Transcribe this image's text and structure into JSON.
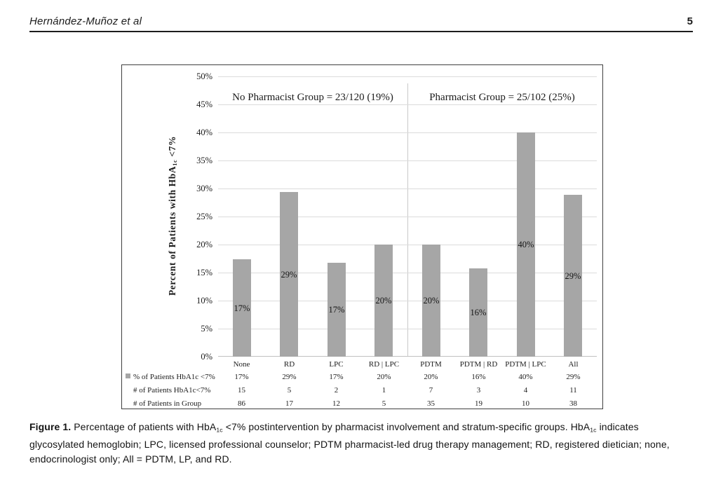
{
  "header": {
    "authors": "Hernández-Muñoz et al",
    "page_number": "5"
  },
  "chart_data": {
    "type": "bar",
    "ylabel": "Percent of Patients with HbA1c <7%",
    "ylabel_parts": {
      "pre": "Percent of Patients with HbA",
      "sub": "1c",
      "post": " <7%"
    },
    "ylim": [
      0,
      50
    ],
    "grid": true,
    "legend_position": "table-left",
    "yticks": [
      {
        "value": 50,
        "label": "50%"
      },
      {
        "value": 45,
        "label": "45%"
      },
      {
        "value": 40,
        "label": "40%"
      },
      {
        "value": 35,
        "label": "35%"
      },
      {
        "value": 30,
        "label": "30%"
      },
      {
        "value": 25,
        "label": "25%"
      },
      {
        "value": 20,
        "label": "20%"
      },
      {
        "value": 15,
        "label": "15%"
      },
      {
        "value": 10,
        "label": "10%"
      },
      {
        "value": 5,
        "label": "5%"
      },
      {
        "value": 0,
        "label": "0%"
      }
    ],
    "group_annotations": [
      {
        "label": "No Pharmacist Group = 23/120 (19%)"
      },
      {
        "label": "Pharmacist Group = 25/102 (25%)"
      }
    ],
    "categories": [
      "None",
      "RD",
      "LPC",
      "RD | LPC",
      "PDTM",
      "PDTM | RD",
      "PDTM | LPC",
      "All"
    ],
    "values": [
      17.4,
      29.4,
      16.7,
      20,
      20,
      15.8,
      40,
      28.9
    ],
    "bar_labels": [
      "17%",
      "29%",
      "17%",
      "20%",
      "20%",
      "16%",
      "40%",
      "29%"
    ],
    "data_table": {
      "rows": [
        {
          "label": "% of Patients HbA1c <7%",
          "legend_marker": true,
          "cells": [
            "17%",
            "29%",
            "17%",
            "20%",
            "20%",
            "16%",
            "40%",
            "29%"
          ]
        },
        {
          "label": "# of Patients HbA1c<7%",
          "legend_marker": false,
          "cells": [
            "15",
            "5",
            "2",
            "1",
            "7",
            "3",
            "4",
            "11"
          ]
        },
        {
          "label": "# of Patients in Group",
          "legend_marker": false,
          "cells": [
            "86",
            "17",
            "12",
            "5",
            "35",
            "19",
            "10",
            "38"
          ]
        }
      ]
    },
    "colors": {
      "bar": "#a6a6a6",
      "gridline": "#dbdbdb",
      "axis_line": "#c0c0c0",
      "divider": "#c9c9c9",
      "frame": "#3f3f3f"
    }
  },
  "caption": {
    "label": "Figure 1.",
    "part1": " Percentage of patients with HbA",
    "sub1": "1c",
    "part2": " <7% postintervention by pharmacist involvement and stratum-specific groups. HbA",
    "sub2": "1c",
    "part3": " indicates glycosylated hemoglobin; LPC, licensed professional counselor; PDTM pharmacist-led drug therapy management; RD, registered dietician; none, endocrinologist only; All = PDTM, LP, and RD."
  }
}
